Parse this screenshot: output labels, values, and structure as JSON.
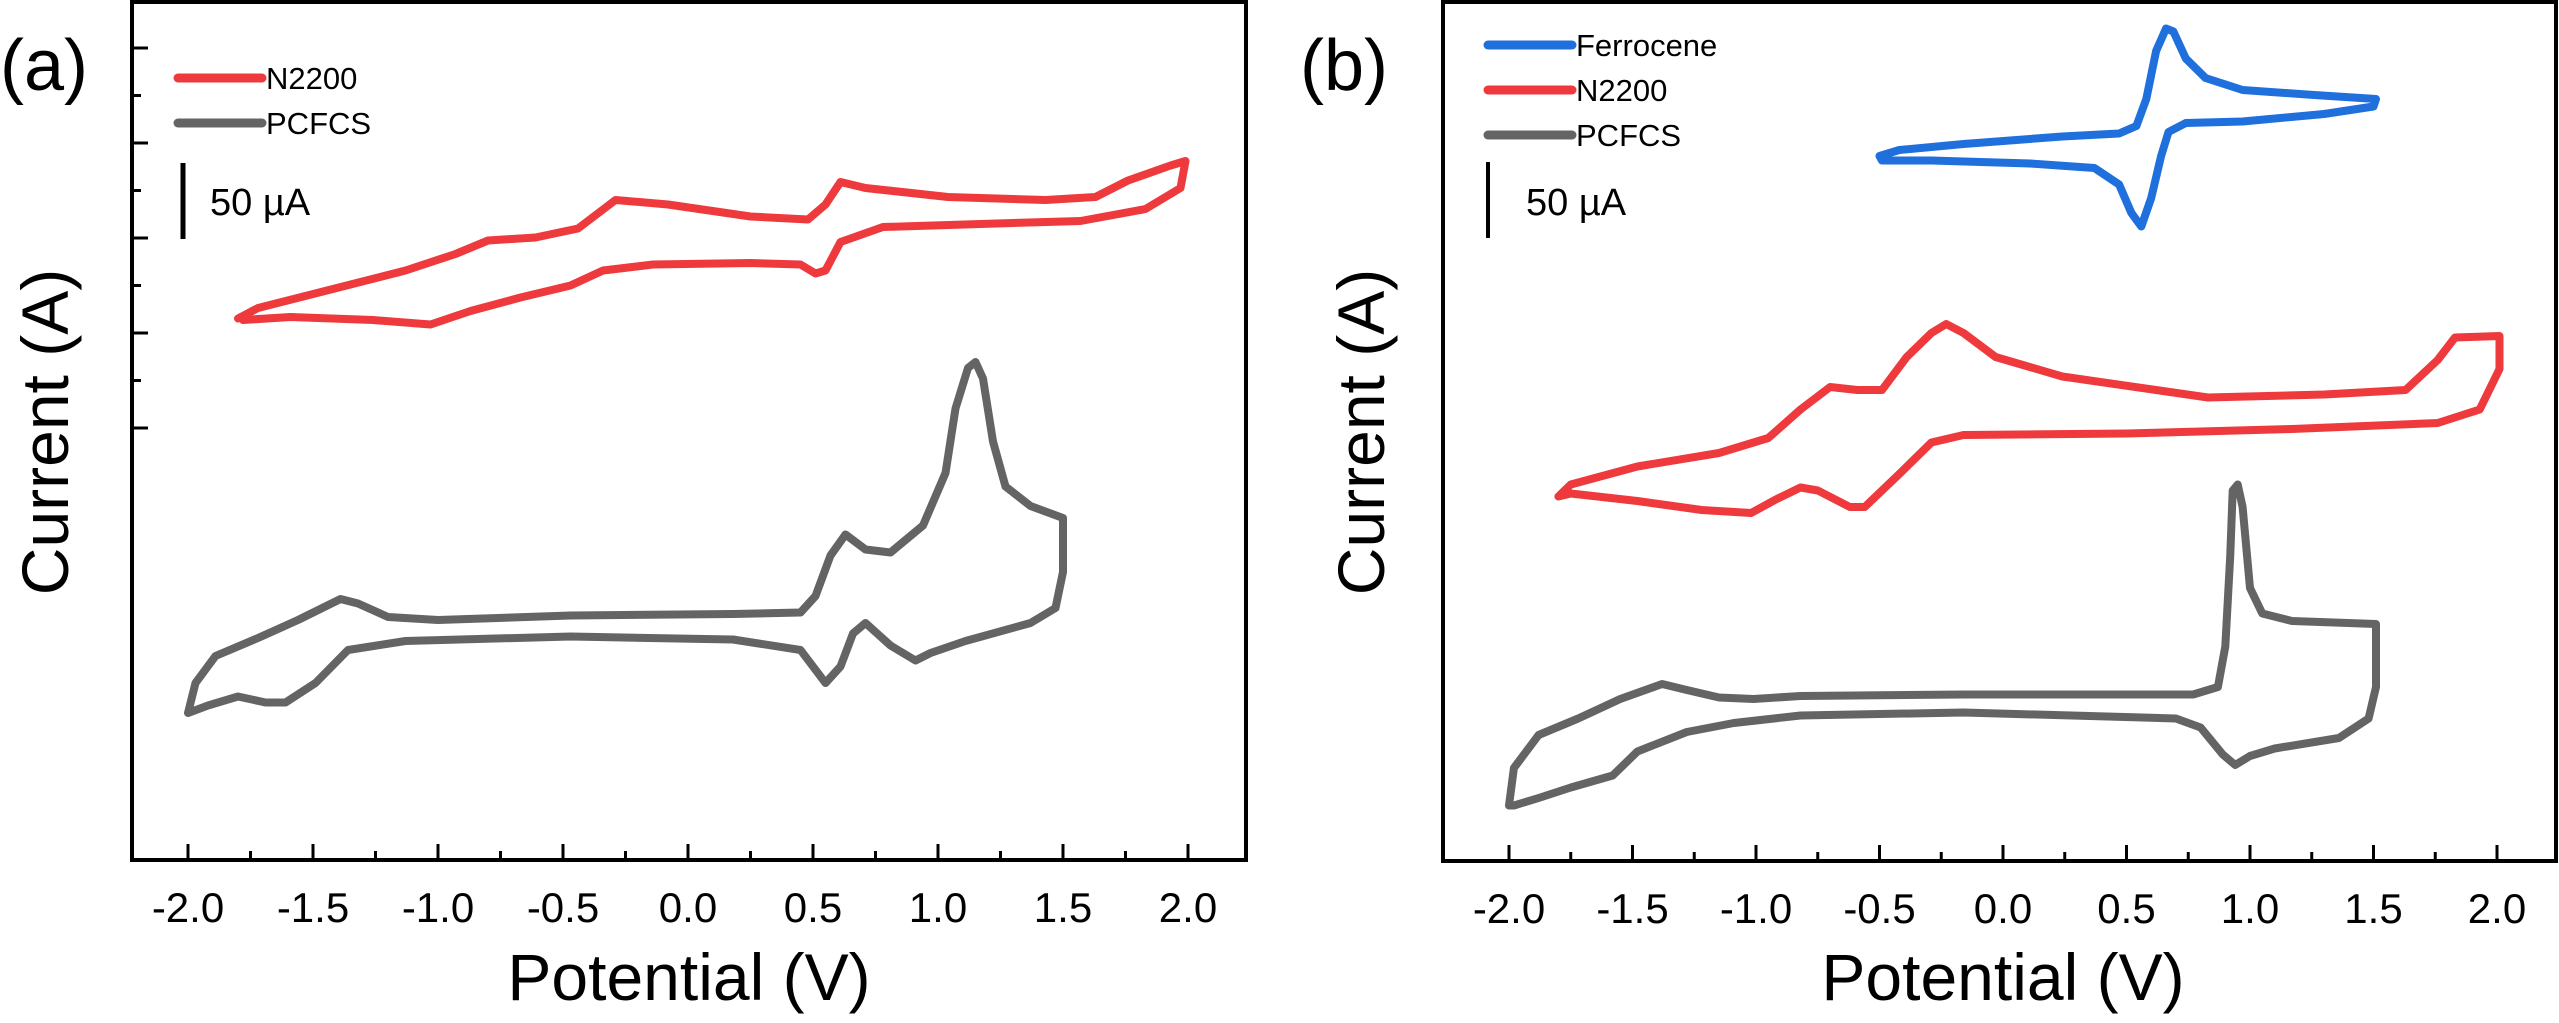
{
  "figure": {
    "description": "Cyclic voltammograms, two panels"
  },
  "chart_data": [
    {
      "type": "line",
      "panel_label": "(a)",
      "title": "",
      "xlabel": "Potential (V)",
      "ylabel": "Current (A)",
      "xlim": [
        -2.3,
        2.3
      ],
      "ylim": [
        0,
        573
      ],
      "y_units_note": "curves vertically offset; values in µA relative to panel bottom",
      "x_ticks": [
        -2.0,
        -1.5,
        -1.0,
        -0.5,
        0.0,
        0.5,
        1.0,
        1.5,
        2.0
      ],
      "x_tick_labels": [
        "-2.0",
        "-1.5",
        "-1.0",
        "-0.5",
        "0.0",
        "0.5",
        "1.0",
        "1.5",
        "2.0"
      ],
      "y_tick_labels_visible": false,
      "grid": false,
      "legend": {
        "placement": "top-left",
        "entries": [
          "N2200",
          "PCFCS"
        ]
      },
      "scale_bar": {
        "label": "50 µA",
        "value_uA": 50
      },
      "series": [
        {
          "name": "N2200",
          "color": "#ee3a3d",
          "points": [
            [
              -1.8,
              361
            ],
            [
              -1.72,
              368
            ],
            [
              -1.46,
              379
            ],
            [
              -1.13,
              393
            ],
            [
              -0.93,
              404
            ],
            [
              -0.8,
              413
            ],
            [
              -0.61,
              415
            ],
            [
              -0.44,
              421
            ],
            [
              -0.29,
              440
            ],
            [
              -0.08,
              437
            ],
            [
              0.25,
              429
            ],
            [
              0.48,
              427
            ],
            [
              0.55,
              437
            ],
            [
              0.61,
              452
            ],
            [
              0.71,
              448
            ],
            [
              1.04,
              442
            ],
            [
              1.43,
              440
            ],
            [
              1.63,
              442
            ],
            [
              1.76,
              453
            ],
            [
              1.93,
              463
            ],
            [
              1.99,
              466
            ],
            [
              1.97,
              448
            ],
            [
              1.83,
              434
            ],
            [
              1.57,
              426
            ],
            [
              1.17,
              424
            ],
            [
              0.78,
              422
            ],
            [
              0.61,
              412
            ],
            [
              0.55,
              393
            ],
            [
              0.51,
              391
            ],
            [
              0.45,
              397
            ],
            [
              0.25,
              398
            ],
            [
              -0.14,
              397
            ],
            [
              -0.34,
              393
            ],
            [
              -0.47,
              383
            ],
            [
              -0.67,
              375
            ],
            [
              -0.87,
              366
            ],
            [
              -1.03,
              357
            ],
            [
              -1.26,
              360
            ],
            [
              -1.59,
              362
            ],
            [
              -1.78,
              360
            ]
          ]
        },
        {
          "name": "PCFCS",
          "color": "#646464",
          "points": [
            [
              -2.0,
              98
            ],
            [
              -1.97,
              118
            ],
            [
              -1.89,
              136
            ],
            [
              -1.72,
              148
            ],
            [
              -1.56,
              160
            ],
            [
              -1.39,
              174
            ],
            [
              -1.32,
              171
            ],
            [
              -1.2,
              162
            ],
            [
              -1.0,
              160
            ],
            [
              -0.47,
              163
            ],
            [
              0.18,
              164
            ],
            [
              0.45,
              165
            ],
            [
              0.51,
              176
            ],
            [
              0.57,
              203
            ],
            [
              0.63,
              217
            ],
            [
              0.71,
              207
            ],
            [
              0.81,
              205
            ],
            [
              0.94,
              223
            ],
            [
              1.03,
              258
            ],
            [
              1.07,
              301
            ],
            [
              1.12,
              328
            ],
            [
              1.15,
              332
            ],
            [
              1.18,
              321
            ],
            [
              1.22,
              279
            ],
            [
              1.27,
              249
            ],
            [
              1.37,
              236
            ],
            [
              1.5,
              228
            ],
            [
              1.5,
              192
            ],
            [
              1.47,
              168
            ],
            [
              1.37,
              158
            ],
            [
              1.11,
              146
            ],
            [
              0.97,
              138
            ],
            [
              0.91,
              133
            ],
            [
              0.81,
              143
            ],
            [
              0.71,
              158
            ],
            [
              0.66,
              151
            ],
            [
              0.61,
              129
            ],
            [
              0.55,
              118
            ],
            [
              0.45,
              140
            ],
            [
              0.18,
              147
            ],
            [
              -0.47,
              149
            ],
            [
              -1.13,
              146
            ],
            [
              -1.36,
              140
            ],
            [
              -1.49,
              118
            ],
            [
              -1.61,
              105
            ],
            [
              -1.69,
              105
            ],
            [
              -1.8,
              109
            ],
            [
              -1.92,
              103
            ],
            [
              -2.0,
              98
            ]
          ]
        }
      ]
    },
    {
      "type": "line",
      "panel_label": "(b)",
      "title": "",
      "xlabel": "Potential (V)",
      "ylabel": "Current (A)",
      "xlim": [
        -2.3,
        2.2
      ],
      "ylim": [
        0,
        573
      ],
      "y_units_note": "curves vertically offset; values in µA relative to panel bottom",
      "x_ticks": [
        -2.0,
        -1.5,
        -1.0,
        -0.5,
        0.0,
        0.5,
        1.0,
        1.5,
        2.0
      ],
      "x_tick_labels": [
        "-2.0",
        "-1.5",
        "-1.0",
        "-0.5",
        "0.0",
        "0.5",
        "1.0",
        "1.5",
        "2.0"
      ],
      "y_tick_labels_visible": false,
      "grid": false,
      "legend": {
        "placement": "top-left",
        "entries": [
          "Ferrocene",
          "N2200",
          "PCFCS"
        ]
      },
      "scale_bar": {
        "label": "50 µA",
        "value_uA": 50
      },
      "series": [
        {
          "name": "Ferrocene",
          "color": "#1f6fdc",
          "points": [
            [
              -0.5,
              470
            ],
            [
              -0.42,
              474
            ],
            [
              -0.16,
              478
            ],
            [
              0.24,
              483
            ],
            [
              0.47,
              485
            ],
            [
              0.54,
              490
            ],
            [
              0.58,
              508
            ],
            [
              0.62,
              540
            ],
            [
              0.66,
              555
            ],
            [
              0.69,
              553
            ],
            [
              0.74,
              535
            ],
            [
              0.82,
              522
            ],
            [
              0.97,
              514
            ],
            [
              1.23,
              511
            ],
            [
              1.51,
              508
            ],
            [
              1.5,
              503
            ],
            [
              1.3,
              498
            ],
            [
              0.97,
              493
            ],
            [
              0.74,
              492
            ],
            [
              0.67,
              486
            ],
            [
              0.64,
              470
            ],
            [
              0.6,
              442
            ],
            [
              0.56,
              423
            ],
            [
              0.52,
              432
            ],
            [
              0.47,
              451
            ],
            [
              0.37,
              462
            ],
            [
              0.11,
              465
            ],
            [
              -0.29,
              467
            ],
            [
              -0.49,
              467
            ],
            [
              -0.5,
              470
            ]
          ]
        },
        {
          "name": "N2200",
          "color": "#ee3a3d",
          "points": [
            [
              -1.8,
              243
            ],
            [
              -1.75,
              251
            ],
            [
              -1.48,
              263
            ],
            [
              -1.15,
              272
            ],
            [
              -0.95,
              282
            ],
            [
              -0.82,
              301
            ],
            [
              -0.7,
              316
            ],
            [
              -0.59,
              314
            ],
            [
              -0.49,
              314
            ],
            [
              -0.39,
              336
            ],
            [
              -0.29,
              352
            ],
            [
              -0.23,
              358
            ],
            [
              -0.16,
              352
            ],
            [
              -0.03,
              336
            ],
            [
              0.24,
              323
            ],
            [
              0.83,
              309
            ],
            [
              1.3,
              311
            ],
            [
              1.63,
              314
            ],
            [
              1.76,
              334
            ],
            [
              1.83,
              349
            ],
            [
              2.01,
              350
            ],
            [
              2.01,
              328
            ],
            [
              1.93,
              301
            ],
            [
              1.76,
              292
            ],
            [
              1.17,
              288
            ],
            [
              0.5,
              285
            ],
            [
              -0.16,
              284
            ],
            [
              -0.29,
              279
            ],
            [
              -0.42,
              258
            ],
            [
              -0.56,
              236
            ],
            [
              -0.62,
              236
            ],
            [
              -0.75,
              247
            ],
            [
              -0.82,
              249
            ],
            [
              -0.92,
              241
            ],
            [
              -1.02,
              232
            ],
            [
              -1.22,
              234
            ],
            [
              -1.48,
              240
            ],
            [
              -1.75,
              245
            ],
            [
              -1.8,
              243
            ]
          ]
        },
        {
          "name": "PCFCS",
          "color": "#646464",
          "points": [
            [
              -2.0,
              37
            ],
            [
              -1.98,
              62
            ],
            [
              -1.88,
              84
            ],
            [
              -1.72,
              95
            ],
            [
              -1.55,
              108
            ],
            [
              -1.38,
              118
            ],
            [
              -1.28,
              114
            ],
            [
              -1.15,
              109
            ],
            [
              -1.01,
              108
            ],
            [
              -0.82,
              110
            ],
            [
              -0.16,
              111
            ],
            [
              0.77,
              111
            ],
            [
              0.87,
              116
            ],
            [
              0.9,
              143
            ],
            [
              0.92,
              203
            ],
            [
              0.93,
              247
            ],
            [
              0.95,
              251
            ],
            [
              0.97,
              236
            ],
            [
              1.0,
              182
            ],
            [
              1.05,
              165
            ],
            [
              1.17,
              160
            ],
            [
              1.51,
              158
            ],
            [
              1.51,
              116
            ],
            [
              1.48,
              95
            ],
            [
              1.36,
              82
            ],
            [
              1.1,
              75
            ],
            [
              1.0,
              70
            ],
            [
              0.94,
              64
            ],
            [
              0.89,
              71
            ],
            [
              0.8,
              89
            ],
            [
              0.7,
              95
            ],
            [
              -0.16,
              99
            ],
            [
              -0.82,
              97
            ],
            [
              -1.09,
              92
            ],
            [
              -1.28,
              86
            ],
            [
              -1.48,
              73
            ],
            [
              -1.58,
              57
            ],
            [
              -1.75,
              49
            ],
            [
              -1.88,
              42
            ],
            [
              -1.98,
              37
            ],
            [
              -2.0,
              37
            ]
          ]
        }
      ]
    }
  ]
}
